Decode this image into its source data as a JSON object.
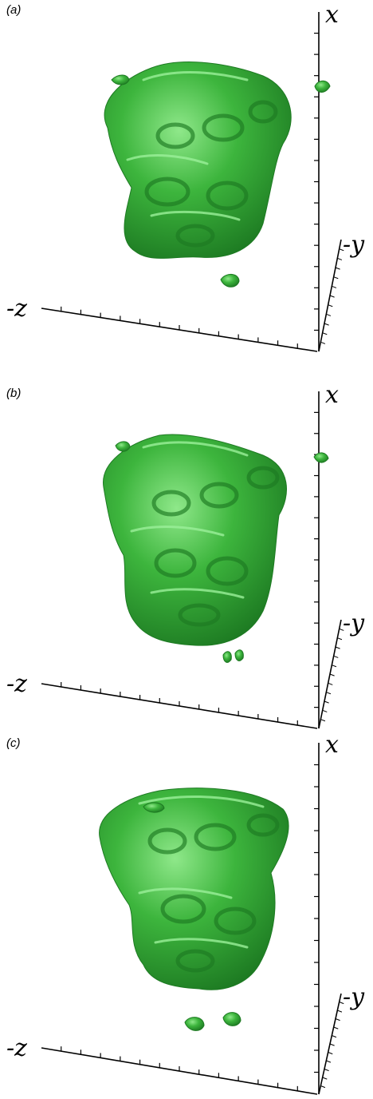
{
  "panels": [
    {
      "label": "(a)"
    },
    {
      "label": "(b)"
    },
    {
      "label": "(c)"
    }
  ],
  "axes": {
    "x": "x",
    "y": "-y",
    "z": "-z"
  },
  "colors": {
    "blob": "#3db53d",
    "blob_dark": "#1d7a22",
    "blob_light": "#7ee07a",
    "axis": "#000000"
  }
}
